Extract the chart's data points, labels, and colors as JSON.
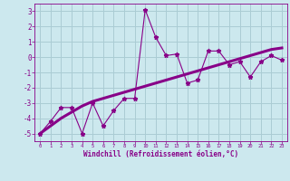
{
  "x": [
    0,
    1,
    2,
    3,
    4,
    5,
    6,
    7,
    8,
    9,
    10,
    11,
    12,
    13,
    14,
    15,
    16,
    17,
    18,
    19,
    20,
    21,
    22,
    23
  ],
  "y_scatter": [
    -5.0,
    -4.2,
    -3.3,
    -3.3,
    -5.0,
    -3.0,
    -4.5,
    -3.5,
    -2.7,
    -2.7,
    3.1,
    1.3,
    0.1,
    0.2,
    -1.7,
    -1.5,
    0.4,
    0.4,
    -0.5,
    -0.3,
    -1.3,
    -0.3,
    0.1,
    -0.2
  ],
  "y_trend": [
    -5.0,
    -4.5,
    -4.0,
    -3.6,
    -3.2,
    -2.9,
    -2.7,
    -2.5,
    -2.3,
    -2.1,
    -1.9,
    -1.7,
    -1.5,
    -1.3,
    -1.1,
    -0.9,
    -0.7,
    -0.5,
    -0.3,
    -0.1,
    0.1,
    0.3,
    0.5,
    0.6
  ],
  "color": "#880088",
  "bg_color": "#cce8ee",
  "grid_color": "#aaccd4",
  "xlabel": "Windchill (Refroidissement éolien,°C)",
  "ylim": [
    -5.5,
    3.5
  ],
  "xlim": [
    -0.5,
    23.5
  ],
  "yticks": [
    -5,
    -4,
    -3,
    -2,
    -1,
    0,
    1,
    2,
    3
  ],
  "xticks": [
    0,
    1,
    2,
    3,
    4,
    5,
    6,
    7,
    8,
    9,
    10,
    11,
    12,
    13,
    14,
    15,
    16,
    17,
    18,
    19,
    20,
    21,
    22,
    23
  ]
}
